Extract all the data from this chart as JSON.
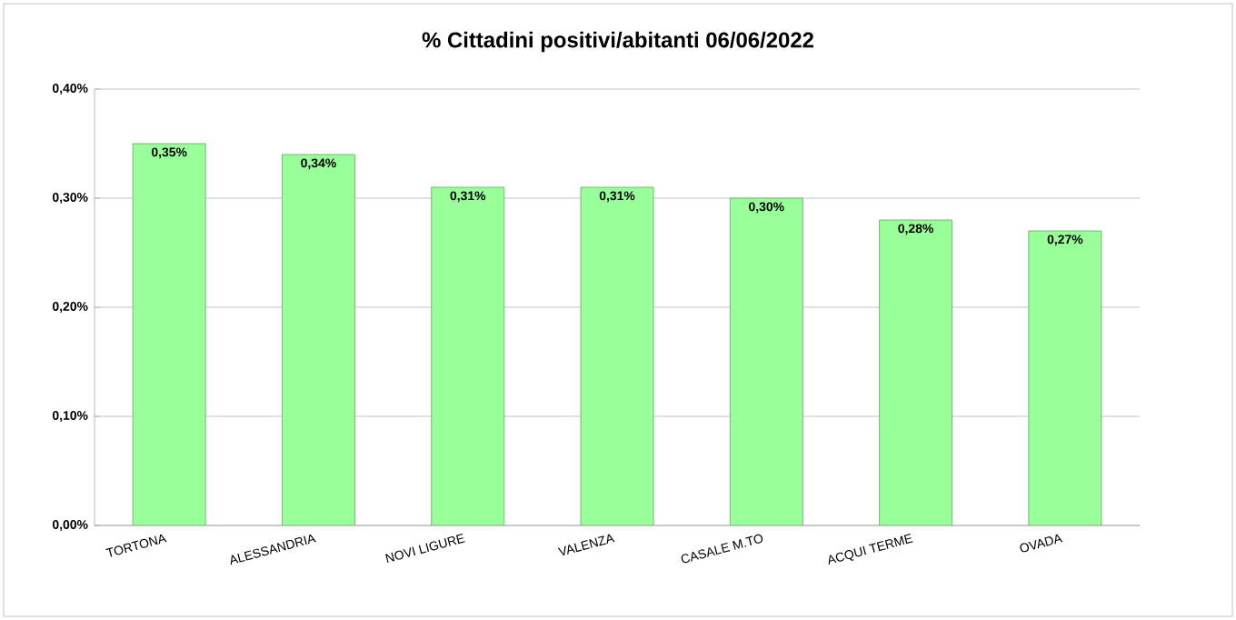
{
  "chart_data": {
    "type": "bar",
    "title": "% Cittadini positivi/abitanti 06/06/2022",
    "categories": [
      "TORTONA",
      "ALESSANDRIA",
      "NOVI LIGURE",
      "VALENZA",
      "CASALE M.TO",
      "ACQUI TERME",
      "OVADA"
    ],
    "values": [
      0.35,
      0.34,
      0.31,
      0.31,
      0.3,
      0.28,
      0.27
    ],
    "value_labels": [
      "0,35%",
      "0,34%",
      "0,31%",
      "0,31%",
      "0,30%",
      "0,28%",
      "0,27%"
    ],
    "color": "#99ff99",
    "ylim": [
      0,
      0.4
    ],
    "yticks": [
      {
        "value": 0,
        "label": "0,00%"
      },
      {
        "value": 0.1,
        "label": "0,10%"
      },
      {
        "value": 0.2,
        "label": "0,20%"
      },
      {
        "value": 0.3,
        "label": "0,30%"
      },
      {
        "value": 0.4,
        "label": "0,40%"
      }
    ],
    "grid": "y"
  }
}
